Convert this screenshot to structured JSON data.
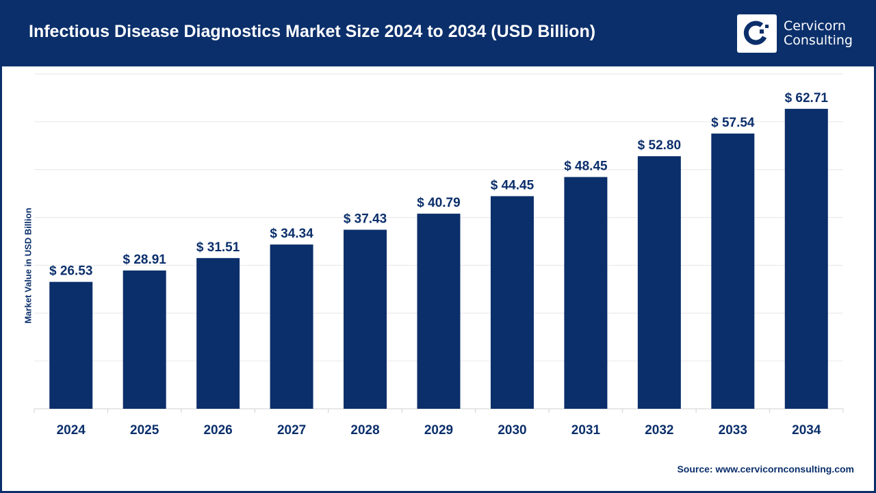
{
  "header": {
    "title": "Infectious Disease Diagnostics Market Size 2024 to 2034 (USD Billion)"
  },
  "logo": {
    "line1": "Cervicorn",
    "line2": "Consulting"
  },
  "source": "Source: www.cervicornconsulting.com",
  "colors": {
    "bar": "#0b2f6b",
    "header": "#0b2f6b",
    "grid": "#e6e6e6"
  },
  "chart_data": {
    "type": "bar",
    "title": "Infectious Disease Diagnostics Market Size 2024 to 2034 (USD Billion)",
    "xlabel": "",
    "ylabel": "Market Value in USD Billion",
    "ylim": [
      0,
      70
    ],
    "grid": true,
    "categories": [
      "2024",
      "2025",
      "2026",
      "2027",
      "2028",
      "2029",
      "2030",
      "2031",
      "2032",
      "2033",
      "2034"
    ],
    "values": [
      26.53,
      28.91,
      31.51,
      34.34,
      37.43,
      40.79,
      44.45,
      48.45,
      52.8,
      57.54,
      62.71
    ],
    "data_labels": [
      "$ 26.53",
      "$ 28.91",
      "$ 31.51",
      "$ 34.34",
      "$ 37.43",
      "$ 40.79",
      "$ 44.45",
      "$ 48.45",
      "$ 52.80",
      "$ 57.54",
      "$ 62.71"
    ]
  }
}
